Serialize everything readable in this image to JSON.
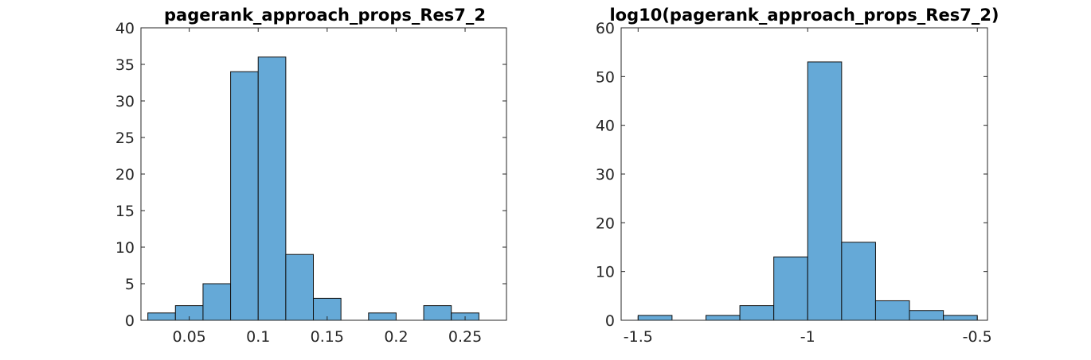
{
  "chart_data": [
    {
      "type": "bar",
      "title": "pagerank_approach_props_Res7_2",
      "xlabel": "",
      "ylabel": "",
      "bin_edges": [
        0.02,
        0.04,
        0.06,
        0.08,
        0.1,
        0.12,
        0.14,
        0.16,
        0.18,
        0.2,
        0.22,
        0.24,
        0.26
      ],
      "values": [
        1,
        2,
        5,
        34,
        36,
        9,
        3,
        0,
        1,
        0,
        2,
        1
      ],
      "xlim": [
        0.015,
        0.28
      ],
      "ylim": [
        0,
        40
      ],
      "xticks": [
        0.05,
        0.1,
        0.15,
        0.2,
        0.25
      ],
      "xtick_labels": [
        "0.05",
        "0.1",
        "0.15",
        "0.2",
        "0.25"
      ],
      "yticks": [
        0,
        5,
        10,
        15,
        20,
        25,
        30,
        35,
        40
      ],
      "ytick_labels": [
        "0",
        "5",
        "10",
        "15",
        "20",
        "25",
        "30",
        "35",
        "40"
      ],
      "bar_color": "#65a9d7",
      "grid": false
    },
    {
      "type": "bar",
      "title": "log10(pagerank_approach_props_Res7_2)",
      "xlabel": "",
      "ylabel": "",
      "bin_edges": [
        -1.5,
        -1.4,
        -1.3,
        -1.2,
        -1.1,
        -1.0,
        -0.9,
        -0.8,
        -0.7,
        -0.6,
        -0.5
      ],
      "values": [
        1,
        0,
        1,
        3,
        13,
        53,
        16,
        4,
        2,
        1
      ],
      "xlim": [
        -1.55,
        -0.47
      ],
      "ylim": [
        0,
        60
      ],
      "xticks": [
        -1.5,
        -1,
        -0.5
      ],
      "xtick_labels": [
        "-1.5",
        "-1",
        "-0.5"
      ],
      "yticks": [
        0,
        10,
        20,
        30,
        40,
        50,
        60
      ],
      "ytick_labels": [
        "0",
        "10",
        "20",
        "30",
        "40",
        "50",
        "60"
      ],
      "bar_color": "#65a9d7",
      "grid": false
    }
  ]
}
